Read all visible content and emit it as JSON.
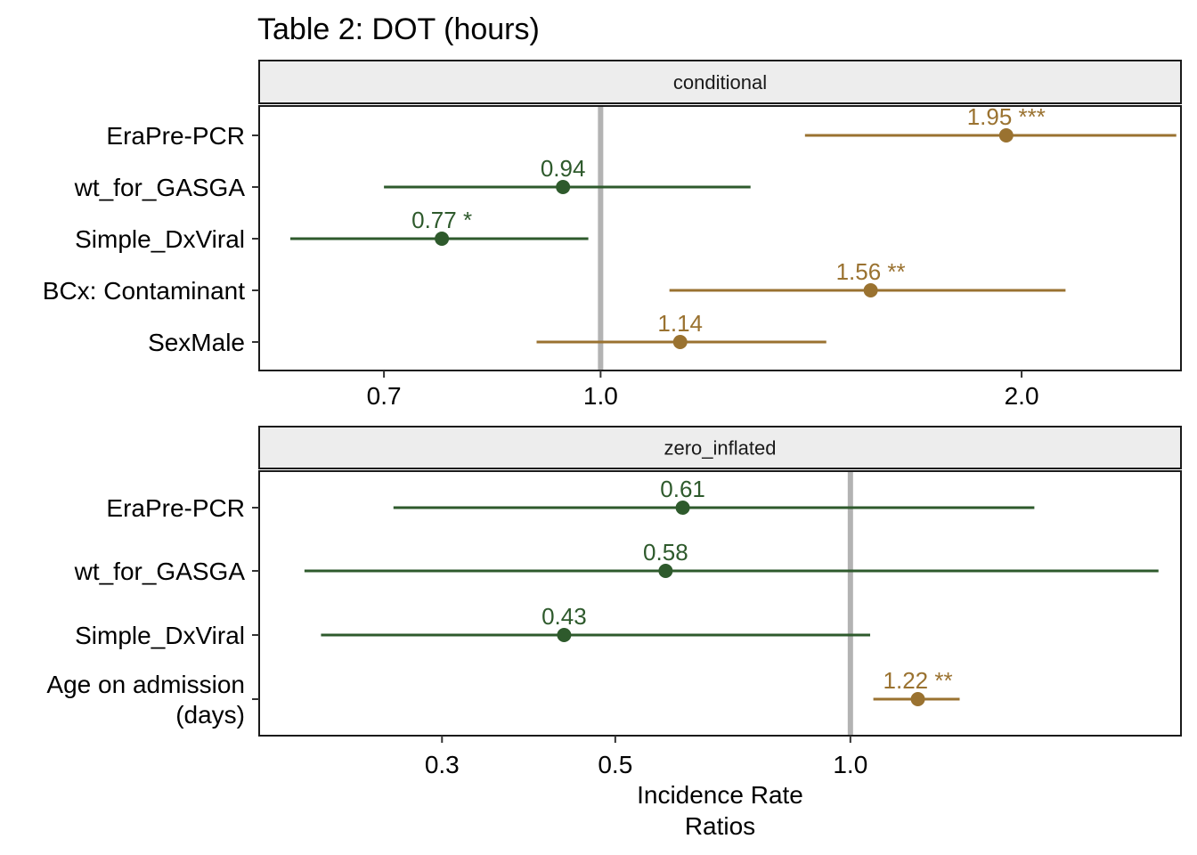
{
  "title": "Table 2: DOT (hours)",
  "colors": {
    "positive": "#9A7230",
    "negative": "#2E5A2C",
    "reference": "#B3B3B3",
    "strip": "#EDEDED"
  },
  "chart_data": [
    {
      "type": "forest",
      "panel": "conditional",
      "x_scale": "log",
      "xlim": [
        0.57,
        2.6
      ],
      "xticks": [
        0.7,
        1.0,
        2.0
      ],
      "xtick_labels": [
        "0.7",
        "1.0",
        "2.0"
      ],
      "reference_line": 1.0,
      "rows": [
        {
          "term": "EraPre-PCR",
          "estimate": 1.95,
          "ci_low": 1.4,
          "ci_high": 2.58,
          "label": "1.95 ***",
          "direction": "positive"
        },
        {
          "term": "wt_for_GASGA",
          "estimate": 0.94,
          "ci_low": 0.7,
          "ci_high": 1.28,
          "label": "0.94",
          "direction": "negative"
        },
        {
          "term": "Simple_DxViral",
          "estimate": 0.77,
          "ci_low": 0.6,
          "ci_high": 0.98,
          "label": "0.77 *",
          "direction": "negative"
        },
        {
          "term": "BCx: Contaminant",
          "estimate": 1.56,
          "ci_low": 1.12,
          "ci_high": 2.15,
          "label": "1.56 **",
          "direction": "positive"
        },
        {
          "term": "SexMale",
          "estimate": 1.14,
          "ci_low": 0.9,
          "ci_high": 1.45,
          "label": "1.14",
          "direction": "positive"
        }
      ]
    },
    {
      "type": "forest",
      "panel": "zero_inflated",
      "x_scale": "log",
      "xlim": [
        0.175,
        2.65
      ],
      "xticks": [
        0.3,
        0.5,
        1.0
      ],
      "xtick_labels": [
        "0.3",
        "0.5",
        "1.0"
      ],
      "reference_line": 1.0,
      "xlabel": [
        "Incidence Rate",
        "Ratios"
      ],
      "rows": [
        {
          "term": [
            "EraPre-PCR"
          ],
          "estimate": 0.61,
          "ci_low": 0.26,
          "ci_high": 1.72,
          "label": "0.61",
          "direction": "negative"
        },
        {
          "term": [
            "wt_for_GASGA"
          ],
          "estimate": 0.58,
          "ci_low": 0.2,
          "ci_high": 2.48,
          "label": "0.58",
          "direction": "negative"
        },
        {
          "term": [
            "Simple_DxViral"
          ],
          "estimate": 0.43,
          "ci_low": 0.21,
          "ci_high": 1.06,
          "label": "0.43",
          "direction": "negative"
        },
        {
          "term": [
            "Age on admission",
            "(days)"
          ],
          "estimate": 1.22,
          "ci_low": 1.07,
          "ci_high": 1.38,
          "label": "1.22 **",
          "direction": "positive"
        }
      ]
    }
  ]
}
